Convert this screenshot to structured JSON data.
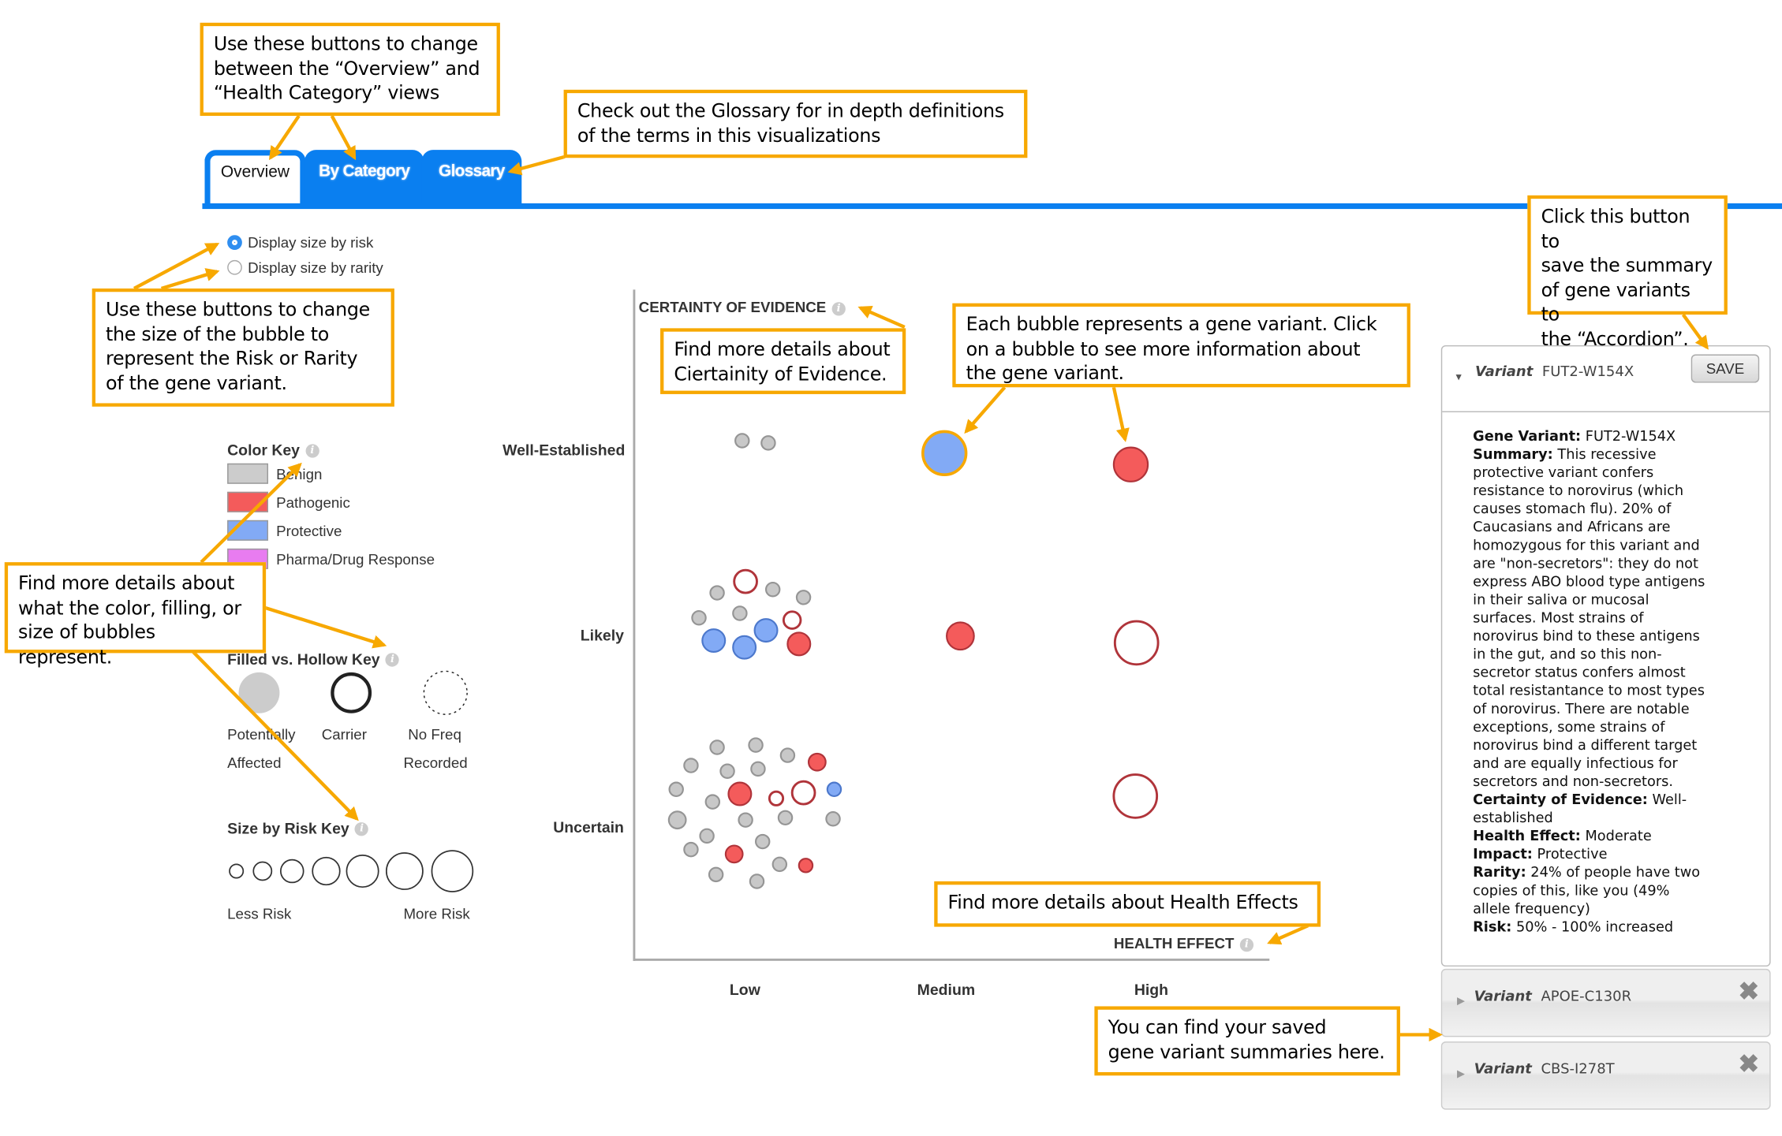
{
  "tabs": [
    {
      "label": "Overview",
      "active": true
    },
    {
      "label": "By Category",
      "active": false
    },
    {
      "label": "Glossary",
      "active": false
    }
  ],
  "size_options": [
    {
      "label": "Display size by risk",
      "selected": true
    },
    {
      "label": "Display size by rarity",
      "selected": false
    }
  ],
  "color_key": {
    "title": "Color Key",
    "items": [
      {
        "label": "Benign",
        "color": "#cccccc"
      },
      {
        "label": "Pathogenic",
        "color": "#f45b5b"
      },
      {
        "label": "Protective",
        "color": "#82aaf5"
      },
      {
        "label": "Pharma/Drug Response",
        "color": "#e87cf0"
      }
    ]
  },
  "fill_key": {
    "title": "Filled vs. Hollow Key",
    "items": [
      {
        "line1": "Potentially",
        "line2": "Affected"
      },
      {
        "line1": "Carrier",
        "line2": ""
      },
      {
        "line1": "No Freq",
        "line2": "Recorded"
      }
    ]
  },
  "size_key": {
    "title": "Size by Risk Key",
    "less": "Less Risk",
    "more": "More Risk"
  },
  "chart_data": {
    "type": "scatter",
    "ylabel": "CERTAINTY OF EVIDENCE",
    "xlabel": "HEALTH EFFECT",
    "x_categories": [
      "Low",
      "Medium",
      "High"
    ],
    "y_categories": [
      "Well-Established",
      "Likely",
      "Uncertain"
    ],
    "colors": {
      "Benign": "#c8c8c8",
      "Pathogenic": "#f45b5b",
      "Protective": "#82aaf5",
      "selected_outline": "#f7a800"
    },
    "bubbles": [
      {
        "effect": "Low",
        "certainty": "Well-Established",
        "impact": "Benign",
        "style": "filled",
        "risk": 1
      },
      {
        "effect": "Low",
        "certainty": "Well-Established",
        "impact": "Benign",
        "style": "filled",
        "risk": 1
      },
      {
        "effect": "Medium",
        "certainty": "Well-Established",
        "impact": "Protective",
        "style": "filled",
        "risk": 7,
        "selected": true
      },
      {
        "effect": "High",
        "certainty": "Well-Established",
        "impact": "Pathogenic",
        "style": "filled",
        "risk": 5
      },
      {
        "effect": "Low",
        "certainty": "Likely",
        "impact": "Pathogenic",
        "style": "hollow",
        "risk": 3
      },
      {
        "effect": "Low",
        "certainty": "Likely",
        "impact": "Benign",
        "style": "filled",
        "risk": 1
      },
      {
        "effect": "Low",
        "certainty": "Likely",
        "impact": "Benign",
        "style": "filled",
        "risk": 1
      },
      {
        "effect": "Low",
        "certainty": "Likely",
        "impact": "Benign",
        "style": "filled",
        "risk": 1
      },
      {
        "effect": "Low",
        "certainty": "Likely",
        "impact": "Benign",
        "style": "filled",
        "risk": 1
      },
      {
        "effect": "Low",
        "certainty": "Likely",
        "impact": "Benign",
        "style": "filled",
        "risk": 1
      },
      {
        "effect": "Low",
        "certainty": "Likely",
        "impact": "Pathogenic",
        "style": "hollow",
        "risk": 2
      },
      {
        "effect": "Low",
        "certainty": "Likely",
        "impact": "Protective",
        "style": "filled",
        "risk": 3
      },
      {
        "effect": "Low",
        "certainty": "Likely",
        "impact": "Protective",
        "style": "filled",
        "risk": 3
      },
      {
        "effect": "Low",
        "certainty": "Likely",
        "impact": "Protective",
        "style": "filled",
        "risk": 3
      },
      {
        "effect": "Low",
        "certainty": "Likely",
        "impact": "Pathogenic",
        "style": "filled",
        "risk": 3
      },
      {
        "effect": "Medium",
        "certainty": "Likely",
        "impact": "Pathogenic",
        "style": "filled",
        "risk": 4
      },
      {
        "effect": "High",
        "certainty": "Likely",
        "impact": "Pathogenic",
        "style": "hollow",
        "risk": 7
      },
      {
        "effect": "Low",
        "certainty": "Uncertain",
        "impact": "Benign",
        "style": "filled",
        "risk": 1
      },
      {
        "effect": "Low",
        "certainty": "Uncertain",
        "impact": "Benign",
        "style": "filled",
        "risk": 1
      },
      {
        "effect": "Low",
        "certainty": "Uncertain",
        "impact": "Benign",
        "style": "filled",
        "risk": 1
      },
      {
        "effect": "Low",
        "certainty": "Uncertain",
        "impact": "Benign",
        "style": "filled",
        "risk": 1
      },
      {
        "effect": "Low",
        "certainty": "Uncertain",
        "impact": "Benign",
        "style": "filled",
        "risk": 1
      },
      {
        "effect": "Low",
        "certainty": "Uncertain",
        "impact": "Benign",
        "style": "filled",
        "risk": 1
      },
      {
        "effect": "Low",
        "certainty": "Uncertain",
        "impact": "Benign",
        "style": "filled",
        "risk": 1
      },
      {
        "effect": "Low",
        "certainty": "Uncertain",
        "impact": "Benign",
        "style": "filled",
        "risk": 1
      },
      {
        "effect": "Low",
        "certainty": "Uncertain",
        "impact": "Benign",
        "style": "filled",
        "risk": 2
      },
      {
        "effect": "Low",
        "certainty": "Uncertain",
        "impact": "Benign",
        "style": "filled",
        "risk": 1
      },
      {
        "effect": "Low",
        "certainty": "Uncertain",
        "impact": "Benign",
        "style": "filled",
        "risk": 1
      },
      {
        "effect": "Low",
        "certainty": "Uncertain",
        "impact": "Benign",
        "style": "filled",
        "risk": 1
      },
      {
        "effect": "Low",
        "certainty": "Uncertain",
        "impact": "Benign",
        "style": "filled",
        "risk": 1
      },
      {
        "effect": "Low",
        "certainty": "Uncertain",
        "impact": "Benign",
        "style": "filled",
        "risk": 1
      },
      {
        "effect": "Low",
        "certainty": "Uncertain",
        "impact": "Benign",
        "style": "filled",
        "risk": 1
      },
      {
        "effect": "Low",
        "certainty": "Uncertain",
        "impact": "Benign",
        "style": "filled",
        "risk": 1
      },
      {
        "effect": "Low",
        "certainty": "Uncertain",
        "impact": "Benign",
        "style": "filled",
        "risk": 1
      },
      {
        "effect": "Low",
        "certainty": "Uncertain",
        "impact": "Benign",
        "style": "filled",
        "risk": 1
      },
      {
        "effect": "Low",
        "certainty": "Uncertain",
        "impact": "Pathogenic",
        "style": "filled",
        "risk": 2
      },
      {
        "effect": "Low",
        "certainty": "Uncertain",
        "impact": "Pathogenic",
        "style": "filled",
        "risk": 3
      },
      {
        "effect": "Low",
        "certainty": "Uncertain",
        "impact": "Pathogenic",
        "style": "filled",
        "risk": 2
      },
      {
        "effect": "Low",
        "certainty": "Uncertain",
        "impact": "Pathogenic",
        "style": "filled",
        "risk": 1
      },
      {
        "effect": "Low",
        "certainty": "Uncertain",
        "impact": "Pathogenic",
        "style": "hollow",
        "risk": 3
      },
      {
        "effect": "Low",
        "certainty": "Uncertain",
        "impact": "Pathogenic",
        "style": "hollow",
        "risk": 1
      },
      {
        "effect": "Low",
        "certainty": "Uncertain",
        "impact": "Protective",
        "style": "filled",
        "risk": 1
      },
      {
        "effect": "High",
        "certainty": "Uncertain",
        "impact": "Pathogenic",
        "style": "hollow",
        "risk": 7
      }
    ]
  },
  "selected_variant": {
    "label": "Variant",
    "name": "FUT2-W154X",
    "save_label": "SAVE",
    "details": [
      {
        "key": "Gene Variant:",
        "value": "FUT2-W154X"
      },
      {
        "key": "Summary:",
        "value": "This recessive protective variant confers resistance to norovirus (which causes stomach flu). 20% of Caucasians and Africans are homozygous for this variant and are \"non-secretors\": they do not express ABO blood type antigens in their saliva or mucosal surfaces. Most strains of norovirus bind to these antigens in the gut, and so this non-secretor status confers almost total resistantance to most types of norovirus. There are notable exceptions, some strains of norovirus bind a different target and are equally infectious for secretors and non-secretors."
      },
      {
        "key": "Certainty of Evidence:",
        "value": "Well-established"
      },
      {
        "key": "Health Effect:",
        "value": "Moderate"
      },
      {
        "key": "Impact:",
        "value": "Protective"
      },
      {
        "key": "Rarity:",
        "value": "24% of people have two copies of this, like you (49% allele frequency)"
      },
      {
        "key": "Risk:",
        "value": "50% - 100% increased"
      }
    ]
  },
  "saved_variants": [
    {
      "label": "Variant",
      "name": "APOE-C130R"
    },
    {
      "label": "Variant",
      "name": "CBS-I278T"
    }
  ],
  "annotations": {
    "tabs": "Use these buttons to change\nbetween the “Overview” and\n“Health Category” views",
    "glossary": "Check out the Glossary for in depth definitions\nof the terms in this visualizations",
    "size": "Use these buttons to change\nthe size of the bubble to\nrepresent the Risk or Rarity\nof the gene variant.",
    "certainty": "Find more details about\nCiertainity of Evidence.",
    "bubble": "Each bubble represents a gene variant. Click\non a bubble to see more information about\nthe gene variant.",
    "save": "Click this button to\nsave the summary\nof gene variants to\nthe “Accordion”.",
    "keys": "Find more details about\nwhat the color, filling, or\nsize of bubbles represent.",
    "health": "Find more details about Health Effects",
    "saved": "You can find your saved\ngene variant summaries here."
  }
}
